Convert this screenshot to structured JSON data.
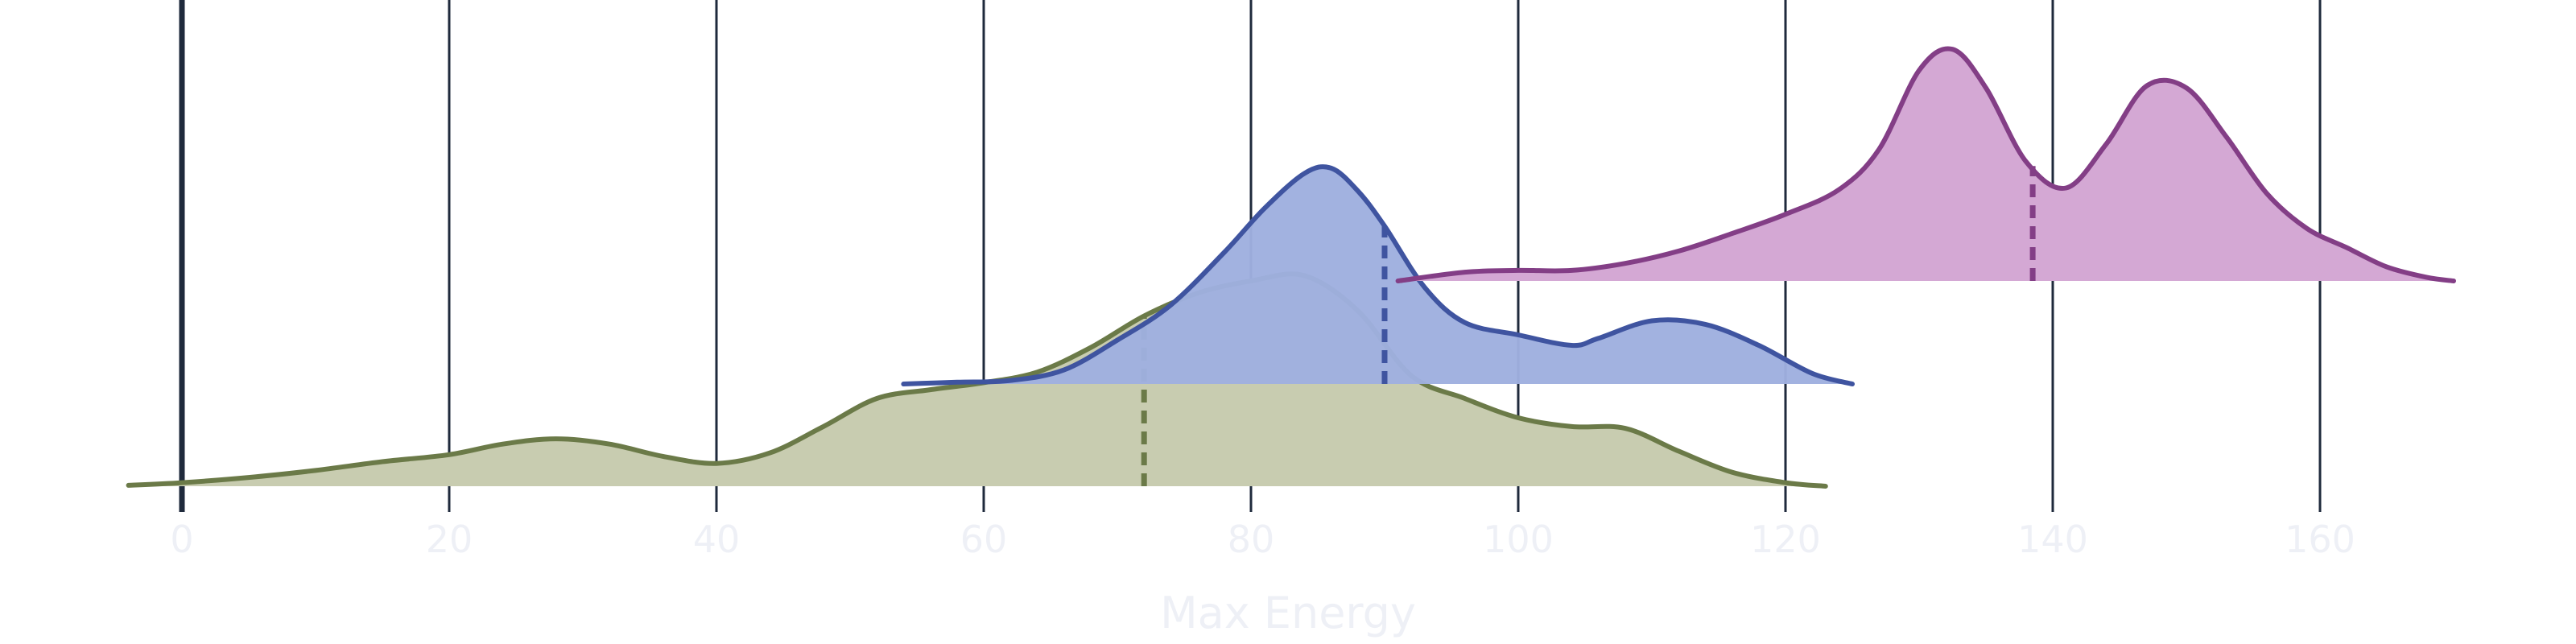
{
  "chart_data": {
    "type": "ridgeline",
    "xlabel": "Max Energy",
    "xlim": [
      -4,
      178
    ],
    "xticks": [
      0,
      20,
      40,
      60,
      80,
      100,
      120,
      140,
      160
    ],
    "tick_labels": [
      "0",
      "20",
      "40",
      "60",
      "80",
      "100",
      "120",
      "140",
      "160"
    ],
    "grid": true,
    "legend": "none",
    "series": [
      {
        "fill": "#c8ccb0",
        "line": "#6b7a48",
        "median": 72,
        "points": [
          [
            -4,
            0.005
          ],
          [
            0,
            0.02
          ],
          [
            5,
            0.05
          ],
          [
            10,
            0.09
          ],
          [
            15,
            0.14
          ],
          [
            20,
            0.18
          ],
          [
            24,
            0.24
          ],
          [
            28,
            0.27
          ],
          [
            32,
            0.24
          ],
          [
            36,
            0.17
          ],
          [
            40,
            0.13
          ],
          [
            44,
            0.19
          ],
          [
            48,
            0.34
          ],
          [
            52,
            0.5
          ],
          [
            56,
            0.55
          ],
          [
            60,
            0.59
          ],
          [
            64,
            0.65
          ],
          [
            68,
            0.79
          ],
          [
            72,
            0.97
          ],
          [
            76,
            1.1
          ],
          [
            80,
            1.17
          ],
          [
            84,
            1.2
          ],
          [
            88,
            1.0
          ],
          [
            92,
            0.63
          ],
          [
            96,
            0.5
          ],
          [
            100,
            0.39
          ],
          [
            104,
            0.34
          ],
          [
            108,
            0.33
          ],
          [
            112,
            0.2
          ],
          [
            116,
            0.08
          ],
          [
            120,
            0.02
          ],
          [
            123,
            0.0
          ]
        ]
      },
      {
        "fill": "#9fb0df",
        "line": "#3f54a0",
        "median": 90,
        "points": [
          [
            54,
            0.0
          ],
          [
            58,
            0.01
          ],
          [
            62,
            0.02
          ],
          [
            66,
            0.08
          ],
          [
            70,
            0.25
          ],
          [
            74,
            0.45
          ],
          [
            78,
            0.75
          ],
          [
            81,
            1.0
          ],
          [
            84,
            1.2
          ],
          [
            86,
            1.23
          ],
          [
            88,
            1.1
          ],
          [
            90,
            0.9
          ],
          [
            93,
            0.55
          ],
          [
            96,
            0.35
          ],
          [
            100,
            0.28
          ],
          [
            104,
            0.22
          ],
          [
            106,
            0.26
          ],
          [
            110,
            0.36
          ],
          [
            114,
            0.34
          ],
          [
            118,
            0.22
          ],
          [
            122,
            0.06
          ],
          [
            125,
            0.0
          ]
        ]
      },
      {
        "fill": "#d4a8d4",
        "line": "#833e86",
        "median": 138.5,
        "points": [
          [
            91,
            0.0
          ],
          [
            96,
            0.05
          ],
          [
            100,
            0.06
          ],
          [
            104,
            0.06
          ],
          [
            108,
            0.1
          ],
          [
            112,
            0.17
          ],
          [
            116,
            0.27
          ],
          [
            120,
            0.38
          ],
          [
            124,
            0.52
          ],
          [
            127,
            0.75
          ],
          [
            130,
            1.2
          ],
          [
            132.5,
            1.32
          ],
          [
            135,
            1.1
          ],
          [
            138,
            0.68
          ],
          [
            141,
            0.53
          ],
          [
            144,
            0.78
          ],
          [
            147,
            1.11
          ],
          [
            150,
            1.1
          ],
          [
            153,
            0.82
          ],
          [
            156,
            0.5
          ],
          [
            159,
            0.3
          ],
          [
            162,
            0.19
          ],
          [
            165,
            0.08
          ],
          [
            168,
            0.02
          ],
          [
            170,
            0.0
          ]
        ]
      }
    ]
  }
}
